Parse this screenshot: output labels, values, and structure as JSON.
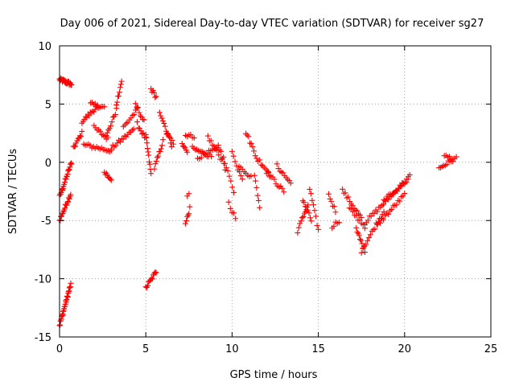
{
  "chart_data": {
    "type": "scatter",
    "title": "Day 006 of 2021, Sidereal Day-to-day VTEC variation (SDTVAR) for receiver sg27",
    "xlabel": "GPS time / hours",
    "ylabel": "SDTVAR / TECUs",
    "xlim": [
      0,
      25
    ],
    "ylim": [
      -15,
      10
    ],
    "xticks": [
      0,
      5,
      10,
      15,
      20,
      25
    ],
    "yticks": [
      -15,
      -10,
      -5,
      0,
      5,
      10
    ],
    "grid": true,
    "marker": "+",
    "series": [
      {
        "name": "SDTVAR",
        "color": "#ff0000",
        "tracks": [
          {
            "x0": 0.0,
            "x1": 0.7,
            "y0": 7.1,
            "y1": 6.7,
            "n": 26
          },
          {
            "x0": 0.0,
            "x1": 0.7,
            "y0": -3.0,
            "y1": 0.0,
            "n": 22
          },
          {
            "x0": 0.0,
            "x1": 0.65,
            "y0": -5.0,
            "y1": -2.7,
            "n": 18
          },
          {
            "x0": 0.0,
            "x1": 0.65,
            "y0": -14.0,
            "y1": -10.5,
            "n": 28
          },
          {
            "x0": 0.8,
            "x1": 1.3,
            "y0": 1.2,
            "y1": 2.5,
            "n": 10
          },
          {
            "x0": 1.3,
            "x1": 2.2,
            "y0": 3.5,
            "y1": 4.8,
            "n": 14
          },
          {
            "x0": 1.8,
            "x1": 2.6,
            "y0": 5.0,
            "y1": 4.7,
            "n": 10
          },
          {
            "x0": 1.4,
            "x1": 3.0,
            "y0": 1.5,
            "y1": 1.0,
            "n": 18
          },
          {
            "x0": 2.0,
            "x1": 2.8,
            "y0": 3.0,
            "y1": 2.0,
            "n": 10
          },
          {
            "x0": 2.6,
            "x1": 3.0,
            "y0": -0.8,
            "y1": -1.4,
            "n": 8
          },
          {
            "x0": 2.7,
            "x1": 3.3,
            "y0": 2.2,
            "y1": 4.5,
            "n": 10
          },
          {
            "x0": 3.0,
            "x1": 4.3,
            "y0": 1.2,
            "y1": 2.8,
            "n": 16
          },
          {
            "x0": 3.3,
            "x1": 3.6,
            "y0": 5.0,
            "y1": 7.0,
            "n": 8
          },
          {
            "x0": 3.7,
            "x1": 4.5,
            "y0": 3.0,
            "y1": 4.5,
            "n": 10
          },
          {
            "x0": 4.4,
            "x1": 4.9,
            "y0": 5.0,
            "y1": 3.5,
            "n": 8
          },
          {
            "x0": 4.5,
            "x1": 5.0,
            "y0": 3.3,
            "y1": 2.0,
            "n": 8
          },
          {
            "x0": 5.0,
            "x1": 5.3,
            "y0": 2.3,
            "y1": -1.0,
            "n": 10
          },
          {
            "x0": 5.3,
            "x1": 5.6,
            "y0": 6.3,
            "y1": 5.6,
            "n": 6
          },
          {
            "x0": 5.5,
            "x1": 6.0,
            "y0": -0.5,
            "y1": 1.8,
            "n": 10
          },
          {
            "x0": 5.0,
            "x1": 5.6,
            "y0": -10.8,
            "y1": -9.4,
            "n": 12
          },
          {
            "x0": 5.8,
            "x1": 6.5,
            "y0": 4.4,
            "y1": 1.5,
            "n": 12
          },
          {
            "x0": 6.2,
            "x1": 6.6,
            "y0": 2.5,
            "y1": 1.7,
            "n": 6
          },
          {
            "x0": 7.1,
            "x1": 7.4,
            "y0": 1.5,
            "y1": 1.0,
            "n": 6
          },
          {
            "x0": 7.3,
            "x1": 7.55,
            "y0": -5.3,
            "y1": -4.0,
            "n": 6
          },
          {
            "x0": 7.4,
            "x1": 7.5,
            "y0": -3.0,
            "y1": -2.8,
            "n": 2
          },
          {
            "x0": 7.3,
            "x1": 7.8,
            "y0": 2.4,
            "y1": 2.1,
            "n": 6
          },
          {
            "x0": 7.7,
            "x1": 8.8,
            "y0": 1.2,
            "y1": 0.5,
            "n": 14
          },
          {
            "x0": 8.0,
            "x1": 9.2,
            "y0": 0.4,
            "y1": 1.2,
            "n": 12
          },
          {
            "x0": 8.6,
            "x1": 9.4,
            "y0": 2.2,
            "y1": 0.2,
            "n": 10
          },
          {
            "x0": 9.2,
            "x1": 9.6,
            "y0": 1.6,
            "y1": -0.5,
            "n": 6
          },
          {
            "x0": 9.5,
            "x1": 10.1,
            "y0": 0.3,
            "y1": -2.5,
            "n": 8
          },
          {
            "x0": 9.8,
            "x1": 10.2,
            "y0": -3.5,
            "y1": -4.8,
            "n": 5
          },
          {
            "x0": 10.0,
            "x1": 10.6,
            "y0": 0.8,
            "y1": -1.5,
            "n": 8
          },
          {
            "x0": 10.4,
            "x1": 11.1,
            "y0": -0.2,
            "y1": -1.3,
            "n": 8
          },
          {
            "x0": 10.8,
            "x1": 11.5,
            "y0": 2.6,
            "y1": 0.2,
            "n": 10
          },
          {
            "x0": 11.3,
            "x1": 11.6,
            "y0": -1.2,
            "y1": -3.8,
            "n": 6
          },
          {
            "x0": 11.6,
            "x1": 12.2,
            "y0": 0.1,
            "y1": -1.0,
            "n": 8
          },
          {
            "x0": 12.0,
            "x1": 13.0,
            "y0": -0.8,
            "y1": -2.5,
            "n": 12
          },
          {
            "x0": 12.6,
            "x1": 13.4,
            "y0": -0.3,
            "y1": -1.8,
            "n": 10
          },
          {
            "x0": 13.8,
            "x1": 14.4,
            "y0": -5.9,
            "y1": -3.6,
            "n": 10
          },
          {
            "x0": 14.1,
            "x1": 14.6,
            "y0": -3.3,
            "y1": -5.0,
            "n": 8
          },
          {
            "x0": 14.5,
            "x1": 15.0,
            "y0": -2.3,
            "y1": -5.8,
            "n": 8
          },
          {
            "x0": 15.6,
            "x1": 16.0,
            "y0": -2.8,
            "y1": -4.2,
            "n": 6
          },
          {
            "x0": 15.8,
            "x1": 16.2,
            "y0": -5.5,
            "y1": -5.0,
            "n": 5
          },
          {
            "x0": 16.4,
            "x1": 17.5,
            "y0": -2.4,
            "y1": -4.8,
            "n": 14
          },
          {
            "x0": 16.8,
            "x1": 17.7,
            "y0": -4.0,
            "y1": -5.5,
            "n": 10
          },
          {
            "x0": 17.2,
            "x1": 17.7,
            "y0": -5.8,
            "y1": -7.6,
            "n": 10
          },
          {
            "x0": 17.5,
            "x1": 18.8,
            "y0": -7.6,
            "y1": -4.2,
            "n": 16
          },
          {
            "x0": 17.7,
            "x1": 20.3,
            "y0": -5.2,
            "y1": -1.2,
            "n": 30
          },
          {
            "x0": 18.4,
            "x1": 20.0,
            "y0": -5.4,
            "y1": -2.8,
            "n": 18
          },
          {
            "x0": 18.8,
            "x1": 20.2,
            "y0": -3.3,
            "y1": -1.5,
            "n": 16
          },
          {
            "x0": 22.0,
            "x1": 22.8,
            "y0": -0.5,
            "y1": 0.2,
            "n": 10
          },
          {
            "x0": 22.3,
            "x1": 23.0,
            "y0": 0.5,
            "y1": 0.3,
            "n": 8
          }
        ]
      }
    ]
  }
}
